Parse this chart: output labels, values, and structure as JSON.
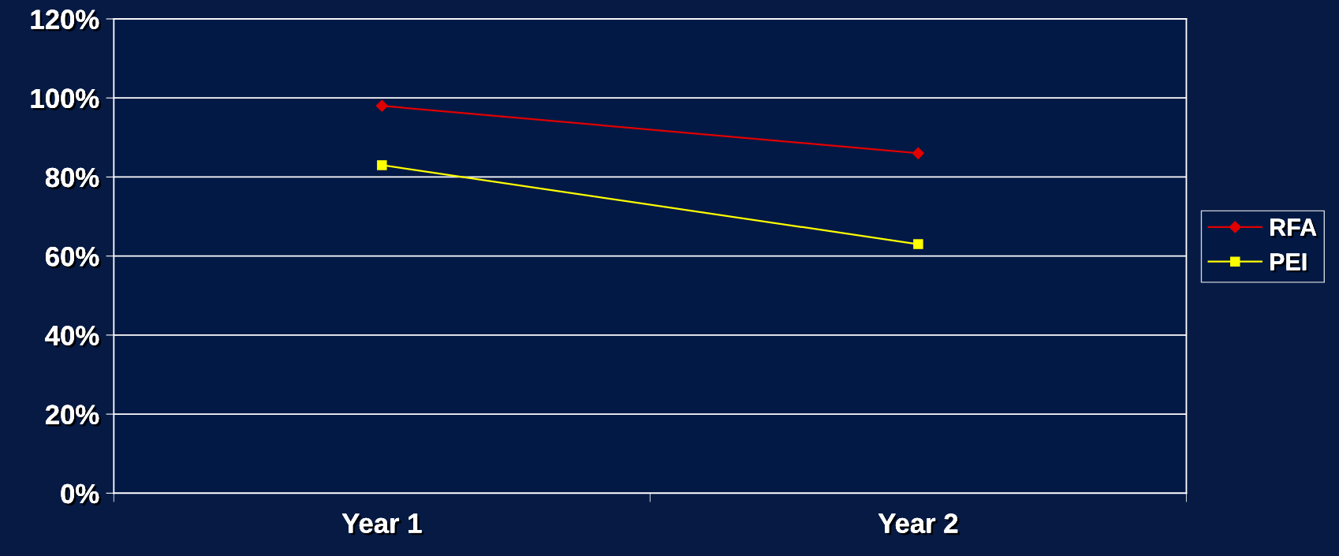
{
  "chart_data": {
    "type": "line",
    "categories": [
      "Year 1",
      "Year 2"
    ],
    "series": [
      {
        "name": "RFA",
        "color": "#e00000",
        "marker": "diamond",
        "values": [
          98,
          86
        ]
      },
      {
        "name": "PEI",
        "color": "#ffff00",
        "marker": "square",
        "values": [
          83,
          63
        ]
      }
    ],
    "ylim": [
      0,
      120
    ],
    "yticks": [
      {
        "value": 0,
        "label": "0%"
      },
      {
        "value": 20,
        "label": "20%"
      },
      {
        "value": 40,
        "label": "40%"
      },
      {
        "value": 60,
        "label": "60%"
      },
      {
        "value": 80,
        "label": "80%"
      },
      {
        "value": 100,
        "label": "100%"
      },
      {
        "value": 120,
        "label": "120%"
      }
    ],
    "grid": "y",
    "legend": "right",
    "line_style": "solid"
  }
}
